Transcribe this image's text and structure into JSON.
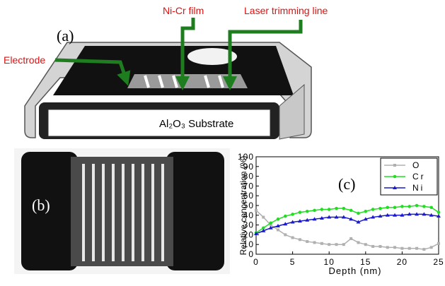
{
  "panel_a": {
    "label": "(a)",
    "callouts": [
      "Ni-Cr film",
      "Laser trimming line",
      "Electrode"
    ],
    "substrate": "Al₂O₃ Substrate"
  },
  "panel_b": {
    "label": "(b)"
  },
  "chart_data": {
    "type": "line",
    "annotation": "(c)",
    "xlabel": "Depth (nm)",
    "ylabel": "Relative concentration (%)",
    "x": [
      0,
      1,
      2,
      3,
      4,
      5,
      6,
      7,
      8,
      9,
      10,
      11,
      12,
      13,
      14,
      15,
      16,
      17,
      18,
      19,
      20,
      21,
      22,
      23,
      24,
      25
    ],
    "series": [
      {
        "name": "O",
        "color": "#b0b0b0",
        "marker": "square",
        "values": [
          45,
          38,
          30,
          25,
          20,
          17,
          15,
          13,
          12,
          11,
          10,
          10,
          10,
          16,
          12,
          10,
          8,
          8,
          7,
          7,
          6,
          6,
          6,
          5,
          7,
          11
        ]
      },
      {
        "name": "Cr",
        "color": "#22dd22",
        "marker": "circle",
        "values": [
          22,
          27,
          32,
          36,
          39,
          41,
          43,
          44,
          45,
          46,
          46,
          47,
          47,
          45,
          42,
          44,
          46,
          47,
          48,
          48,
          49,
          49,
          50,
          49,
          48,
          43
        ]
      },
      {
        "name": "Ni",
        "color": "#1a1acc",
        "marker": "triangle",
        "values": [
          21,
          24,
          27,
          29,
          31,
          33,
          34,
          35,
          36,
          37,
          38,
          38,
          38,
          36,
          33,
          36,
          38,
          39,
          40,
          40,
          40,
          41,
          41,
          41,
          40,
          39
        ]
      }
    ],
    "xlim": [
      0,
      25
    ],
    "xticks": [
      0,
      5,
      10,
      15,
      20,
      25
    ],
    "ylim": [
      0,
      100
    ],
    "yticks": [
      0,
      10,
      20,
      30,
      40,
      50,
      60,
      70,
      80,
      90,
      100
    ],
    "legend": "upper right"
  }
}
